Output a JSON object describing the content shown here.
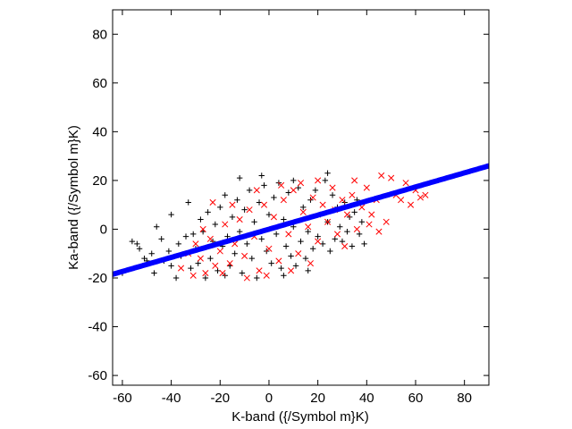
{
  "chart_data": {
    "type": "scatter",
    "title": "",
    "xlabel": "K-band ({/Symbol m}K)",
    "ylabel": "Ka-band ({/Symbol m}K)",
    "xlim": [
      -64,
      90
    ],
    "ylim": [
      -64,
      90
    ],
    "xticks": [
      -60,
      -40,
      -20,
      0,
      20,
      40,
      60,
      80
    ],
    "yticks": [
      -60,
      -40,
      -20,
      0,
      20,
      40,
      60,
      80
    ],
    "grid": false,
    "legend": "none",
    "series": [
      {
        "marker": "plus",
        "color": "#000000",
        "points": [
          [
            -56,
            -5
          ],
          [
            -54,
            -6
          ],
          [
            -53,
            -8
          ],
          [
            -51,
            -12
          ],
          [
            -50,
            -13
          ],
          [
            -48,
            -10
          ],
          [
            -47,
            -18
          ],
          [
            -46,
            1
          ],
          [
            -44,
            -4
          ],
          [
            -43,
            -13
          ],
          [
            -41,
            -9
          ],
          [
            -40,
            -15
          ],
          [
            -40,
            6
          ],
          [
            -38,
            -20
          ],
          [
            -37,
            -6
          ],
          [
            -36,
            -11
          ],
          [
            -34,
            -3
          ],
          [
            -33,
            11
          ],
          [
            -32,
            -16
          ],
          [
            -31,
            -2
          ],
          [
            -30,
            -8
          ],
          [
            -29,
            -14
          ],
          [
            -28,
            4
          ],
          [
            -27,
            -1
          ],
          [
            -26,
            -20
          ],
          [
            -25,
            7
          ],
          [
            -24,
            -12
          ],
          [
            -23,
            -5
          ],
          [
            -22,
            2
          ],
          [
            -21,
            -17
          ],
          [
            -20,
            9
          ],
          [
            -19,
            -7
          ],
          [
            -18,
            14
          ],
          [
            -17,
            -3
          ],
          [
            -16,
            -15
          ],
          [
            -15,
            5
          ],
          [
            -14,
            -10
          ],
          [
            -13,
            12
          ],
          [
            -12,
            -1
          ],
          [
            -11,
            -18
          ],
          [
            -10,
            8
          ],
          [
            -9,
            -6
          ],
          [
            -8,
            16
          ],
          [
            -7,
            -12
          ],
          [
            -6,
            3
          ],
          [
            -5,
            -20
          ],
          [
            -4,
            11
          ],
          [
            -3,
            -4
          ],
          [
            -2,
            18
          ],
          [
            -1,
            -9
          ],
          [
            0,
            6
          ],
          [
            1,
            -14
          ],
          [
            2,
            13
          ],
          [
            3,
            -2
          ],
          [
            4,
            19
          ],
          [
            5,
            -16
          ],
          [
            6,
            4
          ],
          [
            7,
            -7
          ],
          [
            8,
            15
          ],
          [
            9,
            -11
          ],
          [
            10,
            1
          ],
          [
            11,
            -15
          ],
          [
            12,
            17
          ],
          [
            13,
            -5
          ],
          [
            14,
            9
          ],
          [
            15,
            -12
          ],
          [
            16,
            -1
          ],
          [
            17,
            12
          ],
          [
            18,
            -8
          ],
          [
            19,
            16
          ],
          [
            20,
            -3
          ],
          [
            21,
            6
          ],
          [
            22,
            -6
          ],
          [
            23,
            20
          ],
          [
            24,
            3
          ],
          [
            25,
            -9
          ],
          [
            26,
            14
          ],
          [
            27,
            -4
          ],
          [
            28,
            9
          ],
          [
            29,
            1
          ],
          [
            30,
            -5
          ],
          [
            31,
            11
          ],
          [
            32,
            -1
          ],
          [
            33,
            5
          ],
          [
            34,
            -7
          ],
          [
            35,
            7
          ],
          [
            36,
            12
          ],
          [
            37,
            -2
          ],
          [
            38,
            3
          ],
          [
            39,
            -6
          ],
          [
            -60,
            -18
          ],
          [
            24,
            23
          ],
          [
            -12,
            21
          ],
          [
            6,
            -19
          ],
          [
            -3,
            22
          ],
          [
            10,
            20
          ],
          [
            -18,
            -19
          ],
          [
            16,
            -17
          ]
        ]
      },
      {
        "marker": "cross",
        "color": "#ff0000",
        "points": [
          [
            -36,
            -16
          ],
          [
            -33,
            -10
          ],
          [
            -31,
            -19
          ],
          [
            -28,
            -12
          ],
          [
            -26,
            -18
          ],
          [
            -24,
            -4
          ],
          [
            -22,
            -15
          ],
          [
            -20,
            -9
          ],
          [
            -18,
            2
          ],
          [
            -16,
            -14
          ],
          [
            -14,
            -6
          ],
          [
            -12,
            4
          ],
          [
            -10,
            -11
          ],
          [
            -8,
            8
          ],
          [
            -6,
            -3
          ],
          [
            -4,
            -17
          ],
          [
            -2,
            10
          ],
          [
            0,
            -8
          ],
          [
            2,
            5
          ],
          [
            4,
            -13
          ],
          [
            6,
            12
          ],
          [
            8,
            -2
          ],
          [
            10,
            16
          ],
          [
            12,
            -10
          ],
          [
            14,
            7
          ],
          [
            16,
            1
          ],
          [
            18,
            13
          ],
          [
            20,
            -5
          ],
          [
            22,
            10
          ],
          [
            24,
            3
          ],
          [
            26,
            17
          ],
          [
            28,
            -2
          ],
          [
            30,
            12
          ],
          [
            32,
            6
          ],
          [
            34,
            14
          ],
          [
            36,
            0
          ],
          [
            38,
            9
          ],
          [
            40,
            17
          ],
          [
            42,
            6
          ],
          [
            44,
            12
          ],
          [
            46,
            22
          ],
          [
            48,
            3
          ],
          [
            50,
            21
          ],
          [
            52,
            14
          ],
          [
            54,
            12
          ],
          [
            56,
            19
          ],
          [
            58,
            10
          ],
          [
            60,
            16
          ],
          [
            62,
            13
          ],
          [
            64,
            14
          ],
          [
            -23,
            11
          ],
          [
            -5,
            16
          ],
          [
            9,
            -17
          ],
          [
            20,
            20
          ],
          [
            -30,
            -6
          ],
          [
            -15,
            10
          ],
          [
            -1,
            -19
          ],
          [
            13,
            19
          ],
          [
            27,
            8
          ],
          [
            41,
            2
          ],
          [
            -9,
            -20
          ],
          [
            35,
            20
          ],
          [
            45,
            -1
          ],
          [
            -27,
            0
          ],
          [
            5,
            18
          ],
          [
            31,
            -7
          ],
          [
            -19,
            -18
          ],
          [
            17,
            -14
          ]
        ]
      },
      {
        "marker": "circle",
        "color": "#0000ff",
        "slope": 0.289,
        "intercept": 0.0
      }
    ]
  }
}
